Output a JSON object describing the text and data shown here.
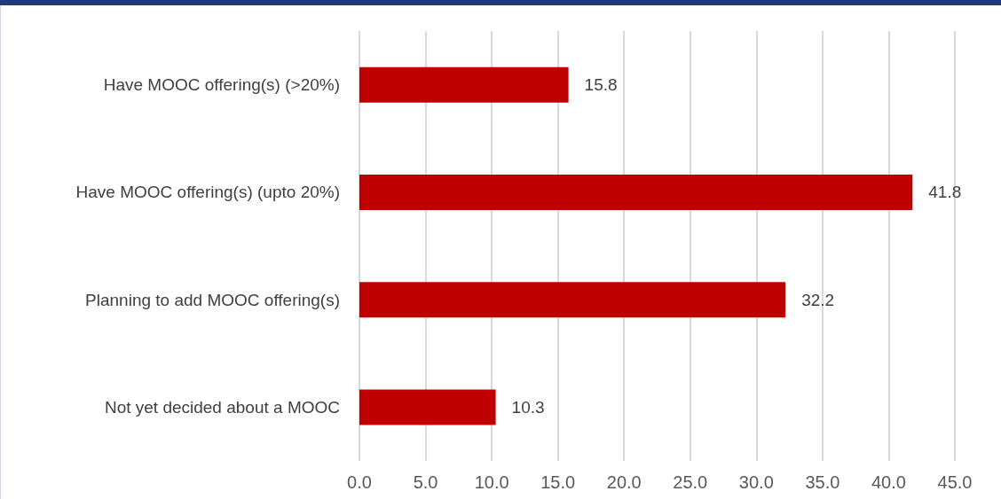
{
  "chart_data": {
    "type": "bar",
    "orientation": "horizontal",
    "categories": [
      "Have MOOC offering(s) (>20%)",
      "Have MOOC offering(s) (upto 20%)",
      "Planning to add MOOC offering(s)",
      "Not yet decided about a MOOC"
    ],
    "values": [
      15.8,
      41.8,
      32.2,
      10.3
    ],
    "color": "#c00000",
    "xlim": [
      0,
      45
    ],
    "xticks": [
      {
        "value": 0,
        "label": "0.0"
      },
      {
        "value": 5,
        "label": "5.0"
      },
      {
        "value": 10,
        "label": "10.0"
      },
      {
        "value": 15,
        "label": "15.0"
      },
      {
        "value": 20,
        "label": "20.0"
      },
      {
        "value": 25,
        "label": "25.0"
      },
      {
        "value": 30,
        "label": "30.0"
      },
      {
        "value": 35,
        "label": "35.0"
      },
      {
        "value": 40,
        "label": "40.0"
      },
      {
        "value": 45,
        "label": "45.0"
      }
    ],
    "grid": "x",
    "data_labels": true
  }
}
